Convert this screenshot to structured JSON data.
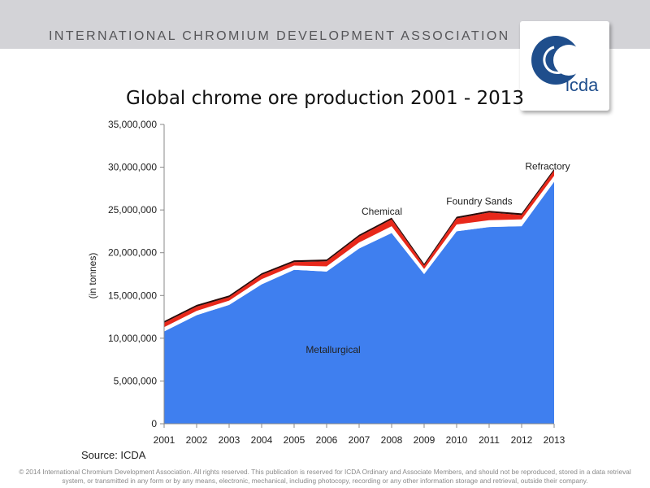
{
  "header": {
    "org_name": "INTERNATIONAL CHROMIUM DEVELOPMENT ASSOCIATION",
    "logo_text": "icda",
    "logo_letters": "Cr",
    "band_color": "#d3d3d7",
    "logo_color": "#1f4e8c"
  },
  "footer": {
    "source": "Source: ICDA",
    "copyright": "© 2014 International Chromium Development Association. All rights reserved. This publication is reserved for ICDA Ordinary and Associate Members, and should not be reproduced, stored in a data retrieval system, or transmitted in any form or by any means, electronic, mechanical, including photocopy, recording or any other information storage and retrieval, outside their company."
  },
  "chart_data": {
    "type": "area",
    "title": "Global chrome ore production 2001 - 2013",
    "ylabel": "(in tonnes)",
    "xlabel": "",
    "ylim": [
      0,
      35000000
    ],
    "yticks": [
      0,
      5000000,
      10000000,
      15000000,
      20000000,
      25000000,
      30000000,
      35000000
    ],
    "ytick_labels": [
      "0",
      "5,000,000",
      "10,000,000",
      "15,000,000",
      "20,000,000",
      "25,000,000",
      "30,000,000",
      "35,000,000"
    ],
    "categories": [
      "2001",
      "2002",
      "2003",
      "2004",
      "2005",
      "2006",
      "2007",
      "2008",
      "2009",
      "2010",
      "2011",
      "2012",
      "2013"
    ],
    "stacked": true,
    "grid": false,
    "series": [
      {
        "name": "Metallurgical",
        "color": "#3f7fef",
        "values": [
          10800000,
          12700000,
          13900000,
          16300000,
          18000000,
          17800000,
          20500000,
          22300000,
          17500000,
          22500000,
          23000000,
          23100000,
          28300000
        ]
      },
      {
        "name": "Chemical",
        "color": "#ffffff",
        "values": [
          500000,
          500000,
          500000,
          600000,
          500000,
          600000,
          700000,
          800000,
          600000,
          800000,
          800000,
          800000,
          700000
        ]
      },
      {
        "name": "Foundry Sands",
        "color": "#e8281a",
        "values": [
          500000,
          500000,
          400000,
          500000,
          400000,
          600000,
          700000,
          800000,
          400000,
          700000,
          900000,
          500000,
          600000
        ]
      },
      {
        "name": "Refractory",
        "color": "#2a0a08",
        "values": [
          200000,
          200000,
          200000,
          200000,
          200000,
          200000,
          200000,
          200000,
          200000,
          200000,
          200000,
          200000,
          200000
        ]
      }
    ]
  }
}
